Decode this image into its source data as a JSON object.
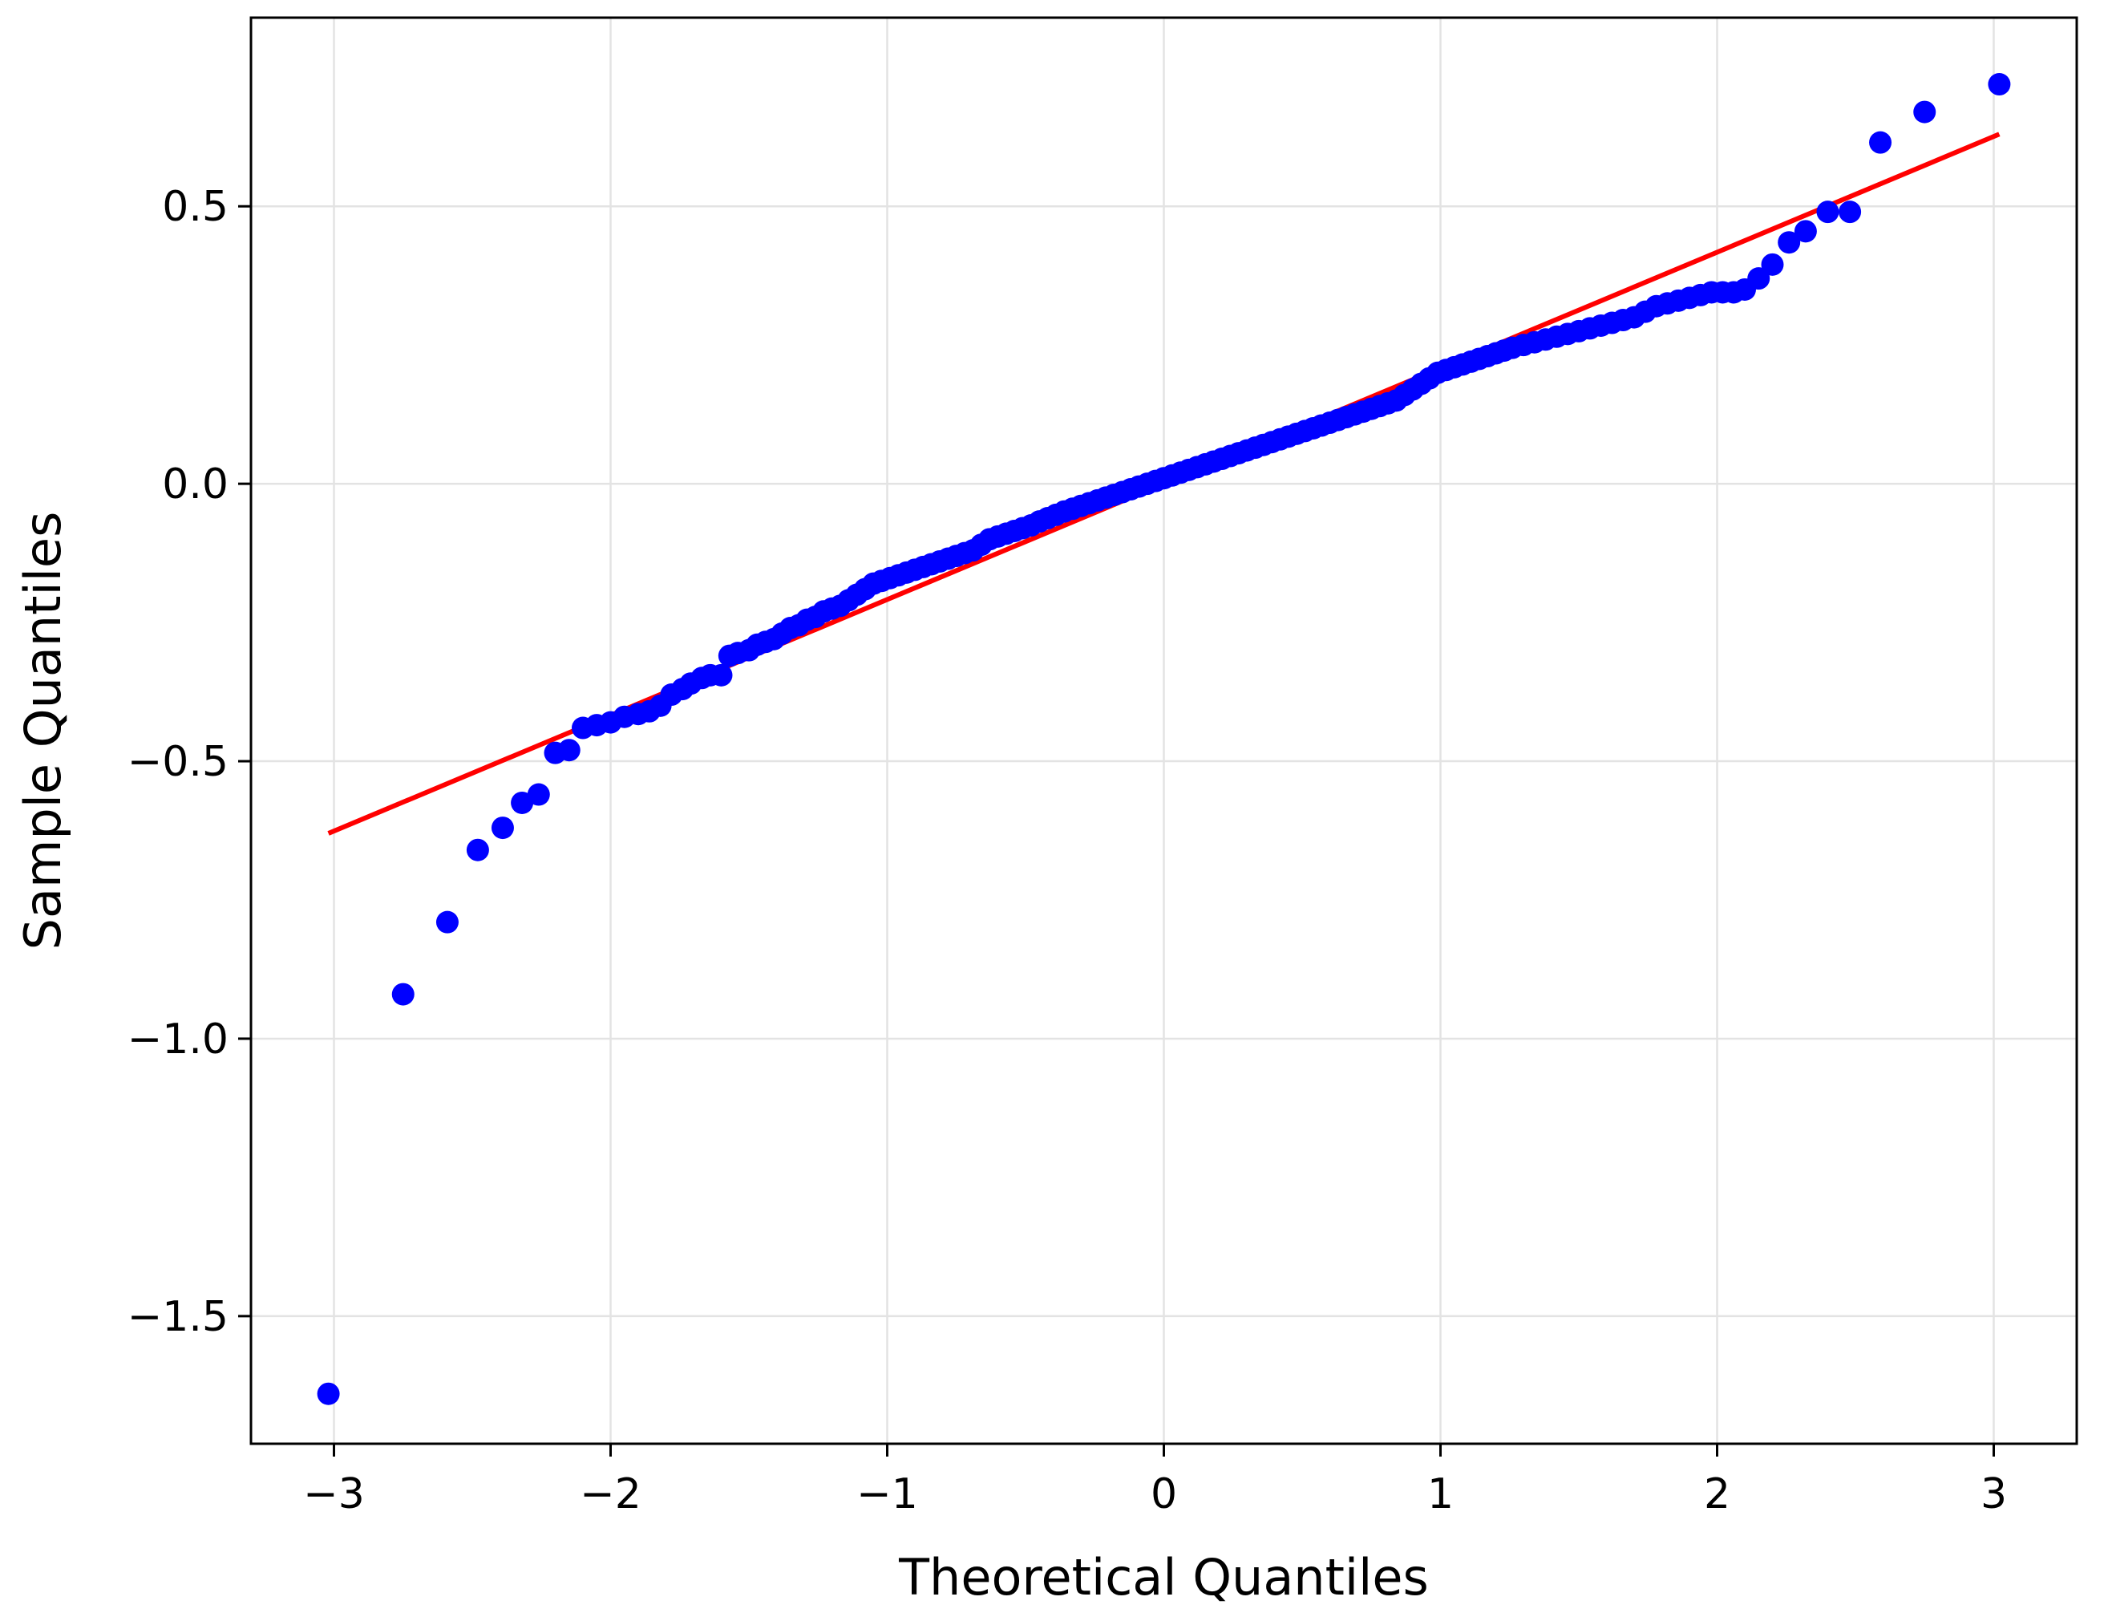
{
  "chart_data": {
    "type": "scatter",
    "title": "",
    "xlabel": "Theoretical Quantiles",
    "ylabel": "Sample Quantiles",
    "xlim": [
      -3.3,
      3.3
    ],
    "ylim": [
      -1.73,
      0.84
    ],
    "grid": true,
    "x_ticks": [
      -3,
      -2,
      -1,
      0,
      1,
      2,
      3
    ],
    "x_tick_labels": [
      "−3",
      "−2",
      "−1",
      "0",
      "1",
      "2",
      "3"
    ],
    "y_ticks": [
      -1.5,
      -1.0,
      -0.5,
      0.0,
      0.5
    ],
    "y_tick_labels": [
      "−1.5",
      "−1.0",
      "−0.5",
      "0.0",
      "0.5"
    ],
    "colors": {
      "points": "#0000ff",
      "line": "#ff0000",
      "grid": "#e3e3e3",
      "frame": "#000000"
    },
    "reference_line": {
      "x": [
        -3.02,
        3.02
      ],
      "y": [
        -0.63,
        0.63
      ]
    },
    "series": [
      {
        "marker": "circle",
        "color": "#0000ff",
        "points": [
          [
            -3.02,
            -1.64
          ],
          [
            -2.75,
            -0.92
          ],
          [
            -2.59,
            -0.79
          ],
          [
            -2.48,
            -0.66
          ],
          [
            -2.39,
            -0.62
          ],
          [
            -2.32,
            -0.575
          ],
          [
            -2.26,
            -0.56
          ],
          [
            -2.2,
            -0.485
          ],
          [
            -2.15,
            -0.48
          ],
          [
            -2.1,
            -0.44
          ],
          [
            -2.05,
            -0.435
          ],
          [
            -2.0,
            -0.43
          ],
          [
            -1.95,
            -0.42
          ],
          [
            -1.9,
            -0.415
          ],
          [
            -1.86,
            -0.41
          ],
          [
            -1.82,
            -0.4
          ],
          [
            -1.78,
            -0.38
          ],
          [
            -1.74,
            -0.37
          ],
          [
            -1.71,
            -0.36
          ],
          [
            -1.67,
            -0.35
          ],
          [
            -1.64,
            -0.345
          ],
          [
            -1.6,
            -0.345
          ],
          [
            -1.57,
            -0.31
          ],
          [
            -1.54,
            -0.305
          ],
          [
            -1.5,
            -0.3
          ],
          [
            -1.47,
            -0.29
          ],
          [
            -1.44,
            -0.285
          ],
          [
            -1.41,
            -0.28
          ],
          [
            -1.38,
            -0.27
          ],
          [
            -1.35,
            -0.26
          ],
          [
            -1.32,
            -0.255
          ],
          [
            -1.29,
            -0.245
          ],
          [
            -1.26,
            -0.24
          ],
          [
            -1.23,
            -0.23
          ],
          [
            -1.2,
            -0.225
          ],
          [
            -1.17,
            -0.22
          ],
          [
            -1.14,
            -0.21
          ],
          [
            -1.11,
            -0.2
          ],
          [
            -1.08,
            -0.19
          ],
          [
            -1.05,
            -0.18
          ],
          [
            -1.02,
            -0.175
          ],
          [
            -0.99,
            -0.17
          ],
          [
            -0.96,
            -0.165
          ],
          [
            -0.93,
            -0.16
          ],
          [
            -0.9,
            -0.155
          ],
          [
            -0.87,
            -0.15
          ],
          [
            -0.84,
            -0.145
          ],
          [
            -0.81,
            -0.14
          ],
          [
            -0.78,
            -0.135
          ],
          [
            -0.75,
            -0.13
          ],
          [
            -0.72,
            -0.125
          ],
          [
            -0.69,
            -0.12
          ],
          [
            -0.66,
            -0.11
          ],
          [
            -0.63,
            -0.1
          ],
          [
            -0.6,
            -0.095
          ],
          [
            -0.57,
            -0.09
          ],
          [
            -0.54,
            -0.085
          ],
          [
            -0.51,
            -0.08
          ],
          [
            -0.48,
            -0.075
          ],
          [
            -0.45,
            -0.068
          ],
          [
            -0.42,
            -0.062
          ],
          [
            -0.39,
            -0.056
          ],
          [
            -0.36,
            -0.05
          ],
          [
            -0.33,
            -0.045
          ],
          [
            -0.3,
            -0.04
          ],
          [
            -0.27,
            -0.035
          ],
          [
            -0.24,
            -0.03
          ],
          [
            -0.21,
            -0.025
          ],
          [
            -0.18,
            -0.02
          ],
          [
            -0.15,
            -0.015
          ],
          [
            -0.12,
            -0.01
          ],
          [
            -0.09,
            -0.005
          ],
          [
            -0.06,
            0.0
          ],
          [
            -0.03,
            0.005
          ],
          [
            0.0,
            0.01
          ],
          [
            0.03,
            0.015
          ],
          [
            0.06,
            0.02
          ],
          [
            0.09,
            0.025
          ],
          [
            0.12,
            0.03
          ],
          [
            0.15,
            0.035
          ],
          [
            0.18,
            0.04
          ],
          [
            0.21,
            0.045
          ],
          [
            0.24,
            0.05
          ],
          [
            0.27,
            0.055
          ],
          [
            0.3,
            0.06
          ],
          [
            0.33,
            0.065
          ],
          [
            0.36,
            0.07
          ],
          [
            0.39,
            0.075
          ],
          [
            0.42,
            0.08
          ],
          [
            0.45,
            0.085
          ],
          [
            0.48,
            0.09
          ],
          [
            0.51,
            0.095
          ],
          [
            0.54,
            0.1
          ],
          [
            0.57,
            0.105
          ],
          [
            0.6,
            0.11
          ],
          [
            0.63,
            0.115
          ],
          [
            0.66,
            0.12
          ],
          [
            0.69,
            0.125
          ],
          [
            0.72,
            0.13
          ],
          [
            0.75,
            0.135
          ],
          [
            0.78,
            0.14
          ],
          [
            0.81,
            0.145
          ],
          [
            0.84,
            0.15
          ],
          [
            0.87,
            0.16
          ],
          [
            0.9,
            0.17
          ],
          [
            0.93,
            0.18
          ],
          [
            0.96,
            0.19
          ],
          [
            0.99,
            0.2
          ],
          [
            1.02,
            0.205
          ],
          [
            1.05,
            0.21
          ],
          [
            1.08,
            0.215
          ],
          [
            1.11,
            0.22
          ],
          [
            1.14,
            0.225
          ],
          [
            1.17,
            0.23
          ],
          [
            1.2,
            0.235
          ],
          [
            1.23,
            0.24
          ],
          [
            1.26,
            0.245
          ],
          [
            1.3,
            0.25
          ],
          [
            1.34,
            0.255
          ],
          [
            1.38,
            0.26
          ],
          [
            1.42,
            0.265
          ],
          [
            1.46,
            0.27
          ],
          [
            1.5,
            0.275
          ],
          [
            1.54,
            0.28
          ],
          [
            1.58,
            0.285
          ],
          [
            1.62,
            0.29
          ],
          [
            1.66,
            0.295
          ],
          [
            1.7,
            0.3
          ],
          [
            1.74,
            0.31
          ],
          [
            1.78,
            0.32
          ],
          [
            1.82,
            0.325
          ],
          [
            1.86,
            0.33
          ],
          [
            1.9,
            0.335
          ],
          [
            1.94,
            0.34
          ],
          [
            1.98,
            0.345
          ],
          [
            2.02,
            0.345
          ],
          [
            2.06,
            0.345
          ],
          [
            2.1,
            0.35
          ],
          [
            2.15,
            0.37
          ],
          [
            2.2,
            0.395
          ],
          [
            2.26,
            0.435
          ],
          [
            2.32,
            0.455
          ],
          [
            2.4,
            0.49
          ],
          [
            2.48,
            0.49
          ],
          [
            2.59,
            0.615
          ],
          [
            2.75,
            0.67
          ],
          [
            3.02,
            0.72
          ]
        ]
      }
    ]
  }
}
